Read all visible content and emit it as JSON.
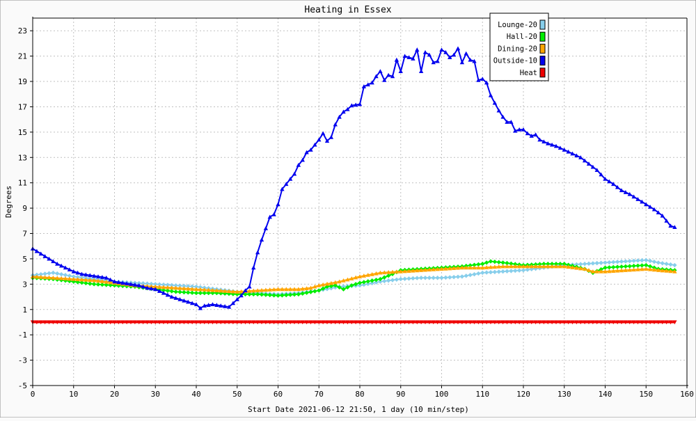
{
  "chart_data": {
    "type": "line",
    "title": "Heating in Essex",
    "xlabel": "Start Date 2021-06-12 21:50, 1 day (10 min/step)",
    "ylabel": "Degrees",
    "xlim": [
      0,
      160
    ],
    "ylim": [
      -5,
      24
    ],
    "x_ticks": [
      0,
      10,
      20,
      30,
      40,
      50,
      60,
      70,
      80,
      90,
      100,
      110,
      120,
      130,
      140,
      150,
      160
    ],
    "y_ticks": [
      -5,
      -3,
      -1,
      1,
      3,
      5,
      7,
      9,
      11,
      13,
      15,
      17,
      19,
      21,
      23
    ],
    "grid": true,
    "legend_position": "top-right",
    "series": [
      {
        "name": "Lounge-20",
        "color": "#87ceeb",
        "marker": "diamond",
        "points": [
          [
            0,
            3.7
          ],
          [
            5,
            3.9
          ],
          [
            10,
            3.6
          ],
          [
            15,
            3.4
          ],
          [
            20,
            3.2
          ],
          [
            25,
            3.1
          ],
          [
            30,
            3.0
          ],
          [
            35,
            2.9
          ],
          [
            40,
            2.8
          ],
          [
            45,
            2.6
          ],
          [
            50,
            2.4
          ],
          [
            52,
            2.3
          ],
          [
            55,
            2.3
          ],
          [
            60,
            2.2
          ],
          [
            65,
            2.3
          ],
          [
            70,
            2.5
          ],
          [
            75,
            2.8
          ],
          [
            80,
            2.9
          ],
          [
            85,
            3.2
          ],
          [
            90,
            3.4
          ],
          [
            95,
            3.5
          ],
          [
            100,
            3.5
          ],
          [
            105,
            3.6
          ],
          [
            110,
            3.9
          ],
          [
            115,
            4.0
          ],
          [
            120,
            4.1
          ],
          [
            125,
            4.3
          ],
          [
            130,
            4.5
          ],
          [
            135,
            4.6
          ],
          [
            140,
            4.7
          ],
          [
            145,
            4.8
          ],
          [
            150,
            4.9
          ],
          [
            153,
            4.7
          ],
          [
            157,
            4.5
          ]
        ]
      },
      {
        "name": "Hall-20",
        "color": "#00ee00",
        "marker": "diamond",
        "points": [
          [
            0,
            3.5
          ],
          [
            5,
            3.4
          ],
          [
            10,
            3.2
          ],
          [
            15,
            3.0
          ],
          [
            20,
            2.9
          ],
          [
            25,
            2.8
          ],
          [
            30,
            2.6
          ],
          [
            35,
            2.4
          ],
          [
            40,
            2.3
          ],
          [
            45,
            2.3
          ],
          [
            50,
            2.2
          ],
          [
            55,
            2.2
          ],
          [
            60,
            2.1
          ],
          [
            65,
            2.2
          ],
          [
            70,
            2.5
          ],
          [
            72,
            2.8
          ],
          [
            74,
            2.9
          ],
          [
            76,
            2.6
          ],
          [
            78,
            2.9
          ],
          [
            80,
            3.1
          ],
          [
            85,
            3.4
          ],
          [
            88,
            3.8
          ],
          [
            90,
            4.1
          ],
          [
            95,
            4.2
          ],
          [
            100,
            4.3
          ],
          [
            105,
            4.4
          ],
          [
            110,
            4.6
          ],
          [
            112,
            4.8
          ],
          [
            115,
            4.7
          ],
          [
            120,
            4.5
          ],
          [
            125,
            4.6
          ],
          [
            130,
            4.6
          ],
          [
            135,
            4.2
          ],
          [
            137,
            3.9
          ],
          [
            140,
            4.3
          ],
          [
            145,
            4.4
          ],
          [
            150,
            4.5
          ],
          [
            153,
            4.2
          ],
          [
            157,
            4.1
          ]
        ]
      },
      {
        "name": "Dining-20",
        "color": "#ffa500",
        "marker": "triangle",
        "points": [
          [
            0,
            3.6
          ],
          [
            5,
            3.5
          ],
          [
            10,
            3.4
          ],
          [
            15,
            3.3
          ],
          [
            20,
            3.1
          ],
          [
            25,
            2.9
          ],
          [
            30,
            2.8
          ],
          [
            35,
            2.7
          ],
          [
            40,
            2.6
          ],
          [
            45,
            2.5
          ],
          [
            50,
            2.4
          ],
          [
            55,
            2.5
          ],
          [
            60,
            2.6
          ],
          [
            65,
            2.6
          ],
          [
            68,
            2.7
          ],
          [
            70,
            2.9
          ],
          [
            75,
            3.2
          ],
          [
            80,
            3.6
          ],
          [
            85,
            3.9
          ],
          [
            90,
            4.0
          ],
          [
            95,
            4.1
          ],
          [
            100,
            4.2
          ],
          [
            105,
            4.3
          ],
          [
            110,
            4.3
          ],
          [
            115,
            4.4
          ],
          [
            120,
            4.4
          ],
          [
            125,
            4.4
          ],
          [
            130,
            4.4
          ],
          [
            135,
            4.2
          ],
          [
            137,
            4.0
          ],
          [
            140,
            4.0
          ],
          [
            145,
            4.1
          ],
          [
            150,
            4.2
          ],
          [
            153,
            4.1
          ],
          [
            157,
            4.0
          ]
        ]
      },
      {
        "name": "Outside-10",
        "color": "#0000ee",
        "marker": "triangle",
        "points": [
          [
            0,
            5.8
          ],
          [
            2,
            5.4
          ],
          [
            4,
            5.0
          ],
          [
            6,
            4.6
          ],
          [
            8,
            4.3
          ],
          [
            10,
            4.0
          ],
          [
            12,
            3.8
          ],
          [
            14,
            3.7
          ],
          [
            16,
            3.6
          ],
          [
            18,
            3.5
          ],
          [
            20,
            3.2
          ],
          [
            22,
            3.1
          ],
          [
            24,
            3.0
          ],
          [
            26,
            2.9
          ],
          [
            28,
            2.7
          ],
          [
            30,
            2.6
          ],
          [
            32,
            2.3
          ],
          [
            34,
            2.0
          ],
          [
            36,
            1.8
          ],
          [
            38,
            1.6
          ],
          [
            40,
            1.4
          ],
          [
            41,
            1.1
          ],
          [
            42,
            1.3
          ],
          [
            44,
            1.4
          ],
          [
            46,
            1.3
          ],
          [
            48,
            1.2
          ],
          [
            50,
            1.8
          ],
          [
            51,
            2.1
          ],
          [
            52,
            2.5
          ],
          [
            53,
            2.8
          ],
          [
            54,
            4.3
          ],
          [
            55,
            5.5
          ],
          [
            56,
            6.5
          ],
          [
            57,
            7.4
          ],
          [
            58,
            8.3
          ],
          [
            59,
            8.5
          ],
          [
            60,
            9.3
          ],
          [
            61,
            10.5
          ],
          [
            62,
            10.9
          ],
          [
            63,
            11.3
          ],
          [
            64,
            11.7
          ],
          [
            65,
            12.4
          ],
          [
            66,
            12.8
          ],
          [
            67,
            13.4
          ],
          [
            68,
            13.6
          ],
          [
            69,
            14.0
          ],
          [
            70,
            14.4
          ],
          [
            71,
            14.9
          ],
          [
            72,
            14.3
          ],
          [
            73,
            14.6
          ],
          [
            74,
            15.6
          ],
          [
            75,
            16.2
          ],
          [
            76,
            16.6
          ],
          [
            77,
            16.8
          ],
          [
            78,
            17.1
          ],
          [
            80,
            17.2
          ],
          [
            81,
            18.6
          ],
          [
            83,
            18.9
          ],
          [
            84,
            19.4
          ],
          [
            85,
            19.8
          ],
          [
            86,
            19.1
          ],
          [
            87,
            19.5
          ],
          [
            88,
            19.4
          ],
          [
            89,
            20.7
          ],
          [
            90,
            19.8
          ],
          [
            91,
            21.0
          ],
          [
            93,
            20.8
          ],
          [
            94,
            21.5
          ],
          [
            95,
            19.8
          ],
          [
            96,
            21.3
          ],
          [
            97,
            21.1
          ],
          [
            98,
            20.5
          ],
          [
            99,
            20.6
          ],
          [
            100,
            21.5
          ],
          [
            101,
            21.3
          ],
          [
            102,
            20.9
          ],
          [
            103,
            21.1
          ],
          [
            104,
            21.6
          ],
          [
            105,
            20.5
          ],
          [
            106,
            21.2
          ],
          [
            107,
            20.7
          ],
          [
            108,
            20.6
          ],
          [
            109,
            19.1
          ],
          [
            110,
            19.2
          ],
          [
            111,
            18.9
          ],
          [
            112,
            17.9
          ],
          [
            113,
            17.3
          ],
          [
            114,
            16.7
          ],
          [
            115,
            16.2
          ],
          [
            116,
            15.8
          ],
          [
            117,
            15.8
          ],
          [
            118,
            15.1
          ],
          [
            119,
            15.2
          ],
          [
            120,
            15.2
          ],
          [
            121,
            14.9
          ],
          [
            122,
            14.7
          ],
          [
            123,
            14.8
          ],
          [
            124,
            14.4
          ],
          [
            126,
            14.1
          ],
          [
            128,
            13.9
          ],
          [
            130,
            13.6
          ],
          [
            132,
            13.3
          ],
          [
            134,
            13.0
          ],
          [
            136,
            12.5
          ],
          [
            138,
            12.0
          ],
          [
            140,
            11.3
          ],
          [
            142,
            10.9
          ],
          [
            144,
            10.4
          ],
          [
            146,
            10.1
          ],
          [
            148,
            9.7
          ],
          [
            150,
            9.3
          ],
          [
            152,
            8.9
          ],
          [
            154,
            8.4
          ],
          [
            156,
            7.6
          ],
          [
            157,
            7.5
          ]
        ]
      },
      {
        "name": "Heat",
        "color": "#ee0000",
        "marker": "triangle-down",
        "points": [
          [
            0,
            0.0
          ],
          [
            157,
            0.0
          ]
        ]
      }
    ]
  }
}
